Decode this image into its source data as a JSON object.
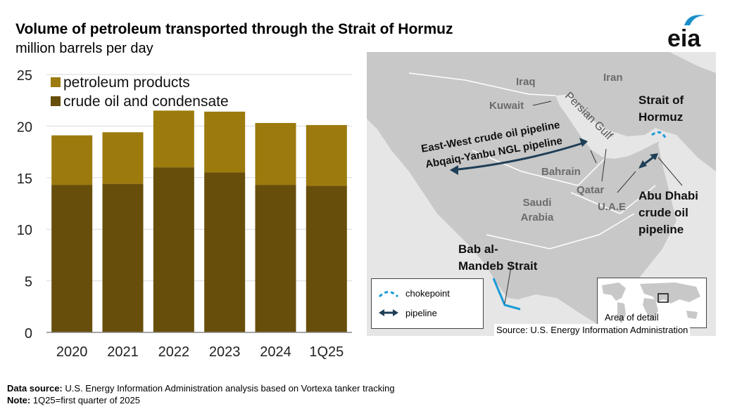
{
  "header": {
    "title": "Volume of petroleum transported through the Strait of Hormuz",
    "subtitle": "million barrels per day",
    "logo_text": "eia"
  },
  "colors": {
    "petroleum_products": "#9c7a0d",
    "crude_oil": "#674e0a",
    "map_land": "#c8c8c8",
    "map_water": "#e6e6e6",
    "chokepoint": "#1a9ad6",
    "pipeline": "#1f3f57",
    "logo_blue": "#1a8fc9"
  },
  "chart_data": {
    "type": "bar",
    "stacked": true,
    "categories": [
      "2020",
      "2021",
      "2022",
      "2023",
      "2024",
      "1Q25"
    ],
    "series": [
      {
        "name": "crude oil and condensate",
        "values": [
          14.3,
          14.4,
          16.0,
          15.5,
          14.3,
          14.2
        ]
      },
      {
        "name": "petroleum products",
        "values": [
          4.8,
          5.0,
          5.5,
          5.9,
          6.0,
          5.9
        ]
      }
    ],
    "ylim": [
      0,
      25
    ],
    "yticks": [
      0,
      5,
      10,
      15,
      20,
      25
    ],
    "grid": true,
    "legend": "top-left",
    "title": "Volume of petroleum transported through the Strait of Hormuz",
    "ylabel": "million barrels per day",
    "xlabel": ""
  },
  "map": {
    "countries": [
      "Iraq",
      "Iran",
      "Kuwait",
      "Bahrain",
      "Qatar",
      "U.A.E",
      "Saudi Arabia"
    ],
    "water_label": "Persian Gulf",
    "strait_hormuz": [
      "Strait of",
      "Hormuz"
    ],
    "bab_al_mandeb": [
      "Bab al-",
      "Mandeb Strait"
    ],
    "east_west_pipeline": "East-West crude oil pipeline",
    "abqaiq_pipeline": "Abqaiq-Yanbu NGL pipeline",
    "abu_dhabi_pipeline": [
      "Abu Dhabi",
      "crude oil",
      "pipeline"
    ],
    "legend": {
      "chokepoint": "chokepoint",
      "pipeline": "pipeline"
    },
    "inset_label": "Area of detail",
    "source": "Source: U.S. Energy Information Administration"
  },
  "footer": {
    "data_source_label": "Data source:",
    "data_source_text": "U.S. Energy Information Administration analysis based on Vortexa tanker tracking",
    "note_label": "Note:",
    "note_text": "1Q25=first quarter of 2025"
  }
}
